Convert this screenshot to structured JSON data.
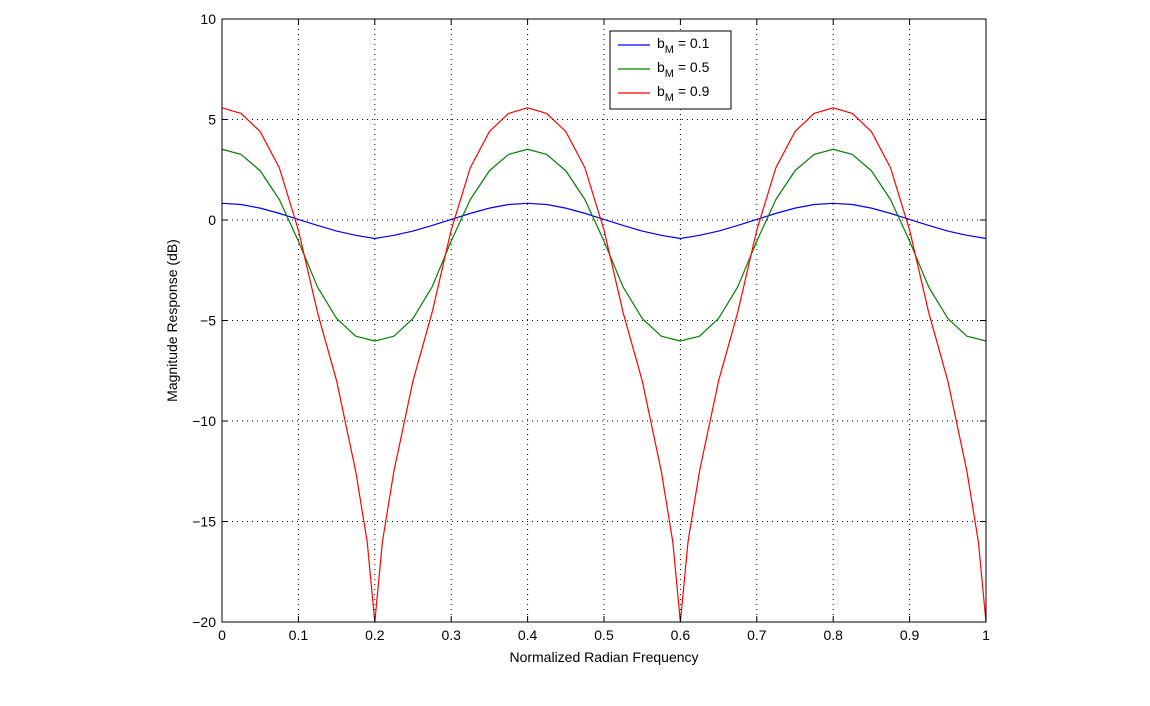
{
  "chart_data": {
    "type": "line",
    "xlabel": "Normalized Radian Frequency",
    "ylabel": "Magnitude Response (dB)",
    "xlim": [
      0,
      1
    ],
    "ylim": [
      -20,
      10
    ],
    "xticks": [
      0,
      0.1,
      0.2,
      0.3,
      0.4,
      0.5,
      0.6,
      0.7,
      0.8,
      0.9,
      1
    ],
    "xtick_labels": [
      "0",
      "0.1",
      "0.2",
      "0.3",
      "0.4",
      "0.5",
      "0.6",
      "0.7",
      "0.8",
      "0.9",
      "1"
    ],
    "yticks": [
      -20,
      -15,
      -10,
      -5,
      0,
      5,
      10
    ],
    "ytick_labels": [
      "−20",
      "−15",
      "−10",
      "−5",
      "0",
      "5",
      "10"
    ],
    "grid": true,
    "legend_position": "top-center",
    "series": [
      {
        "name": "b_M = 0.1",
        "legend_base": "b",
        "legend_sub": "M",
        "legend_rest": " = 0.1",
        "color": "#0000ff",
        "x": [
          0,
          0.025,
          0.05,
          0.075,
          0.1,
          0.125,
          0.15,
          0.175,
          0.2,
          0.225,
          0.25,
          0.275,
          0.3,
          0.325,
          0.35,
          0.375,
          0.4,
          0.425,
          0.45,
          0.475,
          0.5,
          0.525,
          0.55,
          0.575,
          0.6,
          0.625,
          0.65,
          0.675,
          0.7,
          0.725,
          0.75,
          0.775,
          0.8,
          0.825,
          0.85,
          0.875,
          0.9,
          0.925,
          0.95,
          0.975,
          1
        ],
        "y": [
          0.83,
          0.77,
          0.59,
          0.33,
          0.03,
          -0.27,
          -0.55,
          -0.76,
          -0.92,
          -0.76,
          -0.55,
          -0.27,
          0.03,
          0.33,
          0.59,
          0.77,
          0.83,
          0.77,
          0.59,
          0.33,
          0.03,
          -0.27,
          -0.55,
          -0.76,
          -0.92,
          -0.76,
          -0.55,
          -0.27,
          0.03,
          0.33,
          0.59,
          0.77,
          0.83,
          0.77,
          0.59,
          0.33,
          0.03,
          -0.27,
          -0.55,
          -0.76,
          -0.92
        ]
      },
      {
        "name": "b_M = 0.5",
        "legend_base": "b",
        "legend_sub": "M",
        "legend_rest": " = 0.5",
        "color": "#008000",
        "x": [
          0,
          0.025,
          0.05,
          0.075,
          0.1,
          0.125,
          0.15,
          0.175,
          0.2,
          0.225,
          0.25,
          0.275,
          0.3,
          0.325,
          0.35,
          0.375,
          0.4,
          0.425,
          0.45,
          0.475,
          0.5,
          0.525,
          0.55,
          0.575,
          0.6,
          0.625,
          0.65,
          0.675,
          0.7,
          0.725,
          0.75,
          0.775,
          0.8,
          0.825,
          0.85,
          0.875,
          0.9,
          0.925,
          0.95,
          0.975,
          1
        ],
        "y": [
          3.52,
          3.26,
          2.45,
          1.02,
          -1.05,
          -3.33,
          -4.9,
          -5.78,
          -6.02,
          -5.78,
          -4.9,
          -3.33,
          -1.05,
          1.02,
          2.45,
          3.26,
          3.52,
          3.26,
          2.45,
          1.02,
          -1.05,
          -3.33,
          -4.9,
          -5.78,
          -6.02,
          -5.78,
          -4.9,
          -3.33,
          -1.05,
          1.02,
          2.45,
          3.26,
          3.52,
          3.26,
          2.45,
          1.02,
          -1.05,
          -3.33,
          -4.9,
          -5.78,
          -6.02
        ]
      },
      {
        "name": "b_M = 0.9",
        "legend_base": "b",
        "legend_sub": "M",
        "legend_rest": " = 0.9",
        "color": "#ff0000",
        "x": [
          0,
          0.025,
          0.05,
          0.075,
          0.1,
          0.125,
          0.15,
          0.175,
          0.19,
          0.2,
          0.21,
          0.225,
          0.25,
          0.275,
          0.3,
          0.325,
          0.35,
          0.375,
          0.4,
          0.425,
          0.45,
          0.475,
          0.5,
          0.525,
          0.55,
          0.575,
          0.59,
          0.6,
          0.61,
          0.625,
          0.65,
          0.675,
          0.7,
          0.725,
          0.75,
          0.775,
          0.8,
          0.825,
          0.85,
          0.875,
          0.9,
          0.925,
          0.95,
          0.975,
          0.99,
          1
        ],
        "y": [
          5.58,
          5.3,
          4.4,
          2.6,
          -0.5,
          -4.6,
          -8.0,
          -12.5,
          -16.0,
          -20.0,
          -16.0,
          -12.5,
          -8.0,
          -4.6,
          -0.5,
          2.6,
          4.4,
          5.3,
          5.58,
          5.3,
          4.4,
          2.6,
          -0.5,
          -4.6,
          -8.0,
          -12.5,
          -16.0,
          -20.0,
          -16.0,
          -12.5,
          -8.0,
          -4.6,
          -0.5,
          2.6,
          4.4,
          5.3,
          5.58,
          5.3,
          4.4,
          2.6,
          -0.5,
          -4.6,
          -8.0,
          -12.5,
          -16.0,
          -20.0
        ]
      }
    ]
  }
}
